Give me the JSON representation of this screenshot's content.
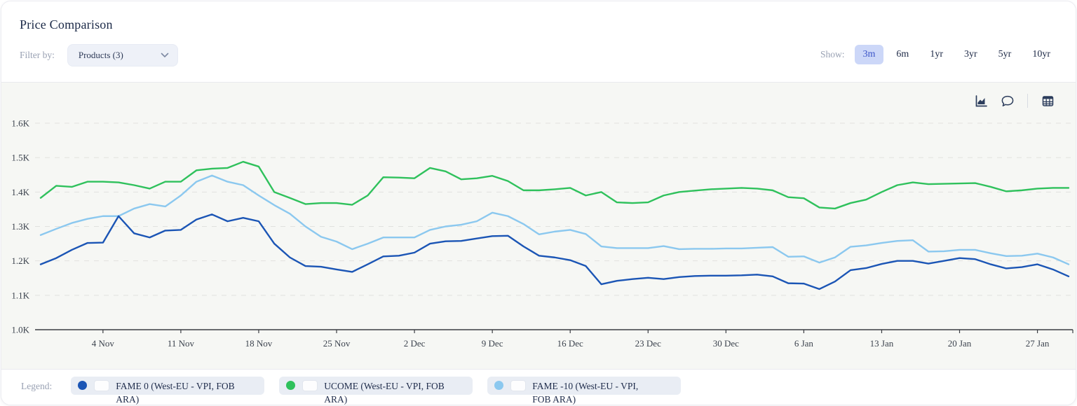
{
  "header": {
    "title": "Price Comparison",
    "filter_label": "Filter by:",
    "products_dropdown": "Products (3)",
    "show_label": "Show:",
    "ranges": [
      "3m",
      "6m",
      "1yr",
      "3yr",
      "5yr",
      "10yr"
    ],
    "active_range": "3m"
  },
  "toolbar": {
    "icons": [
      "area-chart-icon",
      "comment-icon",
      "table-icon"
    ]
  },
  "legend": {
    "label": "Legend:",
    "items": [
      {
        "name": "FAME 0 (West-EU - VPI, FOB ARA)",
        "color": "#1b55b5"
      },
      {
        "name": "UCOME (West-EU - VPI, FOB ARA)",
        "color": "#2fc15c"
      },
      {
        "name": "FAME -10 (West-EU - VPI, FOB ARA)",
        "color": "#8bc8ef"
      }
    ]
  },
  "chart_data": {
    "type": "line",
    "title": "Price Comparison",
    "xlabel": "",
    "ylabel": "",
    "ylim": [
      1000,
      1600
    ],
    "y_tick_labels": [
      "1.0K",
      "1.1K",
      "1.2K",
      "1.3K",
      "1.4K",
      "1.5K",
      "1.6K"
    ],
    "x_tick_labels": [
      "4 Nov",
      "11 Nov",
      "18 Nov",
      "25 Nov",
      "2 Dec",
      "9 Dec",
      "16 Dec",
      "23 Dec",
      "30 Dec",
      "6 Jan",
      "13 Jan",
      "20 Jan",
      "27 Jan"
    ],
    "x_first_tick_index": 4,
    "x_tick_every": 5,
    "grid": "horizontal-dashed",
    "legend_position": "bottom",
    "series": [
      {
        "name": "FAME 0 (West-EU - VPI, FOB ARA)",
        "color": "#1b55b5",
        "values": [
          1190,
          1208,
          1232,
          1252,
          1253,
          1330,
          1280,
          1268,
          1288,
          1290,
          1320,
          1335,
          1315,
          1325,
          1315,
          1250,
          1210,
          1185,
          1183,
          1175,
          1168,
          1190,
          1213,
          1215,
          1224,
          1250,
          1257,
          1258,
          1265,
          1272,
          1273,
          1242,
          1215,
          1210,
          1202,
          1185,
          1132,
          1142,
          1147,
          1151,
          1147,
          1153,
          1156,
          1157,
          1157,
          1158,
          1160,
          1155,
          1135,
          1134,
          1118,
          1140,
          1173,
          1179,
          1191,
          1200,
          1200,
          1192,
          1200,
          1208,
          1205,
          1190,
          1178,
          1182,
          1190,
          1175,
          1155
        ]
      },
      {
        "name": "UCOME (West-EU - VPI, FOB ARA)",
        "color": "#2fc15c",
        "values": [
          1383,
          1418,
          1415,
          1430,
          1430,
          1428,
          1420,
          1410,
          1430,
          1430,
          1463,
          1468,
          1470,
          1488,
          1474,
          1400,
          1383,
          1365,
          1368,
          1368,
          1363,
          1390,
          1443,
          1442,
          1440,
          1470,
          1460,
          1437,
          1440,
          1447,
          1432,
          1405,
          1405,
          1408,
          1412,
          1390,
          1400,
          1370,
          1368,
          1370,
          1390,
          1400,
          1404,
          1408,
          1410,
          1412,
          1410,
          1405,
          1385,
          1382,
          1355,
          1352,
          1368,
          1378,
          1400,
          1420,
          1428,
          1423,
          1424,
          1425,
          1426,
          1415,
          1402,
          1405,
          1410,
          1412,
          1412
        ]
      },
      {
        "name": "FAME -10 (West-EU - VPI, FOB ARA)",
        "color": "#8bc8ef",
        "values": [
          1275,
          1293,
          1310,
          1322,
          1330,
          1330,
          1352,
          1365,
          1358,
          1390,
          1430,
          1448,
          1430,
          1420,
          1390,
          1362,
          1337,
          1300,
          1270,
          1256,
          1234,
          1250,
          1268,
          1268,
          1268,
          1290,
          1300,
          1305,
          1315,
          1340,
          1330,
          1307,
          1277,
          1285,
          1290,
          1278,
          1242,
          1237,
          1237,
          1237,
          1243,
          1234,
          1235,
          1235,
          1236,
          1236,
          1238,
          1240,
          1212,
          1213,
          1195,
          1210,
          1241,
          1245,
          1252,
          1258,
          1260,
          1227,
          1228,
          1232,
          1232,
          1222,
          1214,
          1215,
          1221,
          1210,
          1190
        ]
      }
    ]
  }
}
